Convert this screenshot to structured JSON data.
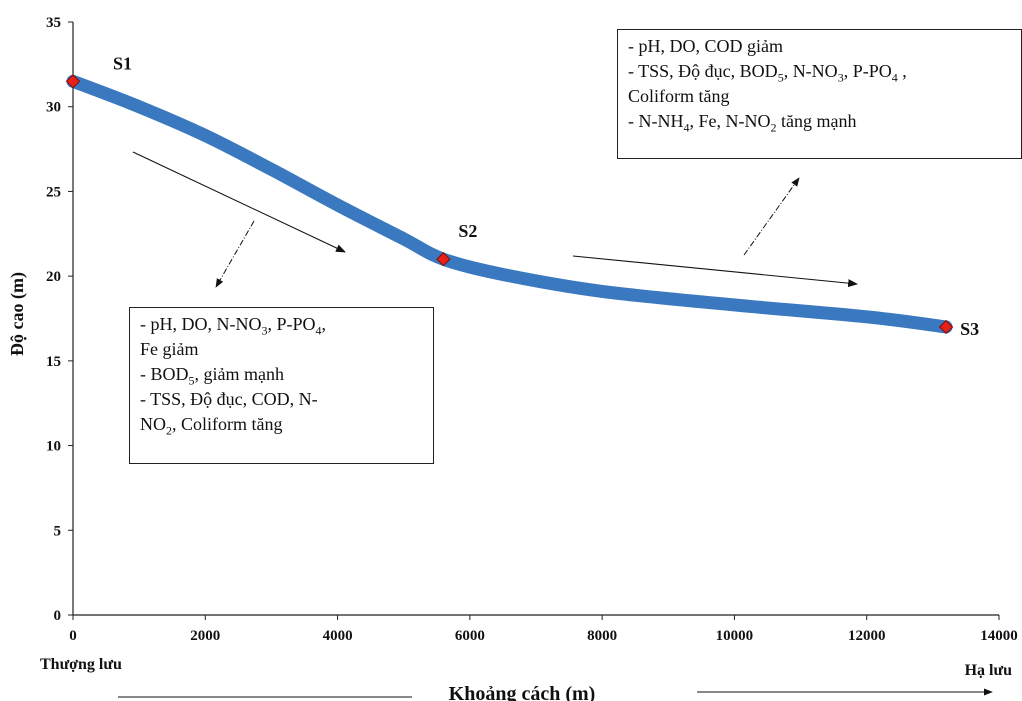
{
  "chart_data": {
    "type": "line",
    "title": "",
    "xlabel": "Khoảng cách (m)",
    "ylabel": "Độ cao (m)",
    "xlim": [
      0,
      14000
    ],
    "ylim": [
      0,
      35
    ],
    "x_ticks": [
      0,
      2000,
      4000,
      6000,
      8000,
      10000,
      12000,
      14000
    ],
    "y_ticks": [
      0,
      5,
      10,
      15,
      20,
      25,
      30,
      35
    ],
    "grid": false,
    "line_color": "#3a78c0",
    "marker_color": "#e8201a",
    "series": [
      {
        "x": [
          0,
          1000,
          2000,
          3000,
          4000,
          5000,
          5600,
          6500,
          8000,
          10000,
          12000,
          13200
        ],
        "values": [
          31.5,
          30.0,
          28.3,
          26.3,
          24.2,
          22.2,
          21.0,
          20.1,
          19.1,
          18.3,
          17.6,
          17.0
        ]
      }
    ],
    "points": [
      {
        "label": "S1",
        "x": 0,
        "y": 31.5
      },
      {
        "label": "S2",
        "x": 5600,
        "y": 21.0
      },
      {
        "label": "S3",
        "x": 13200,
        "y": 17.0
      }
    ],
    "upstream_label": "Thượng lưu",
    "downstream_label": "Hạ lưu"
  },
  "annotations": {
    "top": {
      "line1": "- pH, DO, COD giảm",
      "line2a": "- TSS, Độ đục, BOD",
      "line2b": "5",
      "line2c": ", N-NO",
      "line2d": "3",
      "line2e": ", P-PO",
      "line2f": "4",
      "line2g": " ,",
      "line3": "Coliform tăng",
      "line4a": "- N-NH",
      "line4b": "4",
      "line4c": ", Fe, N-NO",
      "line4d": "2",
      "line4e": " tăng mạnh"
    },
    "bottom": {
      "line1a": "- pH, DO, N-NO",
      "line1b": "3",
      "line1c": ", P-PO",
      "line1d": "4",
      "line1e": ",",
      "line2": "Fe giảm",
      "line3a": "- BOD",
      "line3b": "5",
      "line3c": ", giảm mạnh",
      "line4": "- TSS, Độ đục, COD, N-",
      "line5a": "NO",
      "line5b": "2",
      "line5c": ", Coliform tăng"
    }
  }
}
